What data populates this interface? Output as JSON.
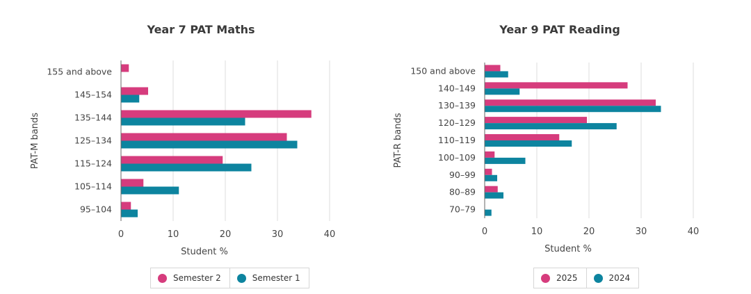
{
  "colors": {
    "series_a": "#d63c7d",
    "series_b": "#0d849f",
    "grid": "#dcdcdc",
    "axis": "#666666"
  },
  "chart_data": [
    {
      "type": "bar",
      "orientation": "horizontal",
      "title": "Year 7 PAT Maths",
      "xlabel": "Student %",
      "ylabel": "PAT-M bands",
      "xlim": [
        0,
        40
      ],
      "xticks": [
        0,
        10,
        20,
        30,
        40
      ],
      "grid": true,
      "legend_position": "bottom",
      "categories": [
        "155 and above",
        "145-154",
        "135-144",
        "125-134",
        "115-124",
        "105-114",
        "95-104"
      ],
      "series": [
        {
          "name": "Semester 2",
          "values": [
            1.5,
            5.2,
            36.5,
            31.8,
            19.5,
            4.3,
            1.9
          ]
        },
        {
          "name": "Semester 1",
          "values": [
            null,
            3.5,
            23.8,
            33.8,
            25.0,
            11.1,
            3.2
          ]
        }
      ]
    },
    {
      "type": "bar",
      "orientation": "horizontal",
      "title": "Year 9 PAT Reading",
      "xlabel": "Student %",
      "ylabel": "PAT-R bands",
      "xlim": [
        0,
        40
      ],
      "xticks": [
        0,
        10,
        20,
        30,
        40
      ],
      "grid": true,
      "legend_position": "bottom",
      "categories": [
        "150 and above",
        "140-149",
        "130-139",
        "120-129",
        "110-119",
        "100-109",
        "90-99",
        "80-89",
        "70-79"
      ],
      "series": [
        {
          "name": "2025",
          "values": [
            3.0,
            27.4,
            32.8,
            19.6,
            14.3,
            1.9,
            1.4,
            2.5,
            null
          ]
        },
        {
          "name": "2024",
          "values": [
            4.5,
            6.7,
            33.8,
            25.3,
            16.7,
            7.8,
            2.4,
            3.6,
            1.3
          ]
        }
      ]
    }
  ]
}
